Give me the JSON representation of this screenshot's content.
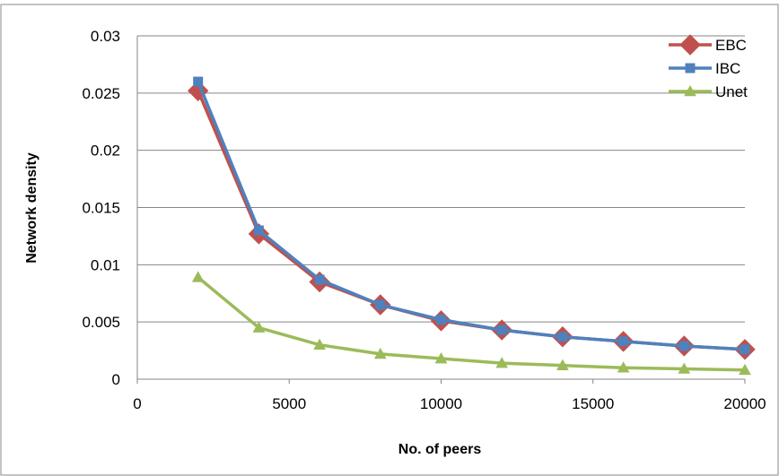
{
  "chart_data": {
    "type": "line",
    "title": "",
    "xlabel": "No. of peers",
    "ylabel": "Network density",
    "xlim": [
      0,
      20000
    ],
    "ylim": [
      0,
      0.03
    ],
    "x_ticks": [
      "0",
      "5000",
      "10000",
      "15000",
      "20000"
    ],
    "y_ticks": [
      "0",
      "0.005",
      "0.01",
      "0.015",
      "0.02",
      "0.025",
      "0.03"
    ],
    "grid": "horizontal",
    "legend_position": "top-right",
    "x": [
      2000,
      4000,
      6000,
      8000,
      10000,
      12000,
      14000,
      16000,
      18000,
      20000
    ],
    "series": [
      {
        "name": "EBC",
        "color": "#C0504D",
        "marker": "diamond",
        "values": [
          0.0252,
          0.0127,
          0.0085,
          0.0065,
          0.0051,
          0.0043,
          0.0037,
          0.0033,
          0.0029,
          0.0026
        ]
      },
      {
        "name": "IBC",
        "color": "#4F81BD",
        "marker": "square",
        "values": [
          0.026,
          0.013,
          0.0087,
          0.0065,
          0.0052,
          0.0043,
          0.0037,
          0.0033,
          0.0029,
          0.0026
        ]
      },
      {
        "name": "Unet",
        "color": "#9BBB59",
        "marker": "triangle",
        "values": [
          0.0089,
          0.0045,
          0.003,
          0.0022,
          0.0018,
          0.0014,
          0.0012,
          0.001,
          0.0009,
          0.0008
        ]
      }
    ]
  }
}
